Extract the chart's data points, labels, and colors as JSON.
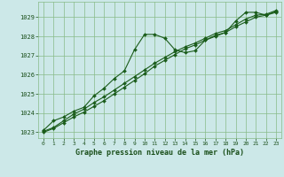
{
  "title": "Graphe pression niveau de la mer (hPa)",
  "background_color": "#cce8e8",
  "plot_bg_color": "#cce8e8",
  "line_color": "#1a5c1a",
  "grid_color": "#88bb88",
  "text_color": "#1a4f1a",
  "xlim": [
    -0.5,
    23.5
  ],
  "ylim": [
    1022.7,
    1029.8
  ],
  "yticks": [
    1023,
    1024,
    1025,
    1026,
    1027,
    1028,
    1029
  ],
  "xticks": [
    0,
    1,
    2,
    3,
    4,
    5,
    6,
    7,
    8,
    9,
    10,
    11,
    12,
    13,
    14,
    15,
    16,
    17,
    18,
    19,
    20,
    21,
    22,
    23
  ],
  "series1_x": [
    0,
    1,
    2,
    3,
    4,
    5,
    6,
    7,
    8,
    9,
    10,
    11,
    12,
    13,
    14,
    15,
    16,
    17,
    18,
    19,
    20,
    21,
    22,
    23
  ],
  "series1_y": [
    1023.1,
    1023.6,
    1023.8,
    1024.1,
    1024.3,
    1024.9,
    1025.3,
    1025.8,
    1026.2,
    1027.3,
    1028.1,
    1028.1,
    1027.9,
    1027.3,
    1027.15,
    1027.25,
    1027.8,
    1028.0,
    1028.2,
    1028.8,
    1029.25,
    1029.25,
    1029.1,
    1029.3
  ],
  "series2_x": [
    0,
    1,
    2,
    3,
    4,
    5,
    6,
    7,
    8,
    9,
    10,
    11,
    12,
    13,
    14,
    15,
    16,
    17,
    18,
    19,
    20,
    21,
    22,
    23
  ],
  "series2_y": [
    1023.0,
    1023.2,
    1023.5,
    1023.8,
    1024.05,
    1024.35,
    1024.65,
    1025.0,
    1025.35,
    1025.7,
    1026.05,
    1026.45,
    1026.75,
    1027.05,
    1027.35,
    1027.55,
    1027.8,
    1028.05,
    1028.2,
    1028.5,
    1028.75,
    1029.0,
    1029.1,
    1029.25
  ],
  "series3_x": [
    0,
    1,
    2,
    3,
    4,
    5,
    6,
    7,
    8,
    9,
    10,
    11,
    12,
    13,
    14,
    15,
    16,
    17,
    18,
    19,
    20,
    21,
    22,
    23
  ],
  "series3_y": [
    1023.05,
    1023.25,
    1023.6,
    1023.95,
    1024.2,
    1024.55,
    1024.85,
    1025.2,
    1025.55,
    1025.9,
    1026.25,
    1026.6,
    1026.9,
    1027.2,
    1027.45,
    1027.65,
    1027.9,
    1028.15,
    1028.3,
    1028.6,
    1028.9,
    1029.1,
    1029.15,
    1029.35
  ]
}
